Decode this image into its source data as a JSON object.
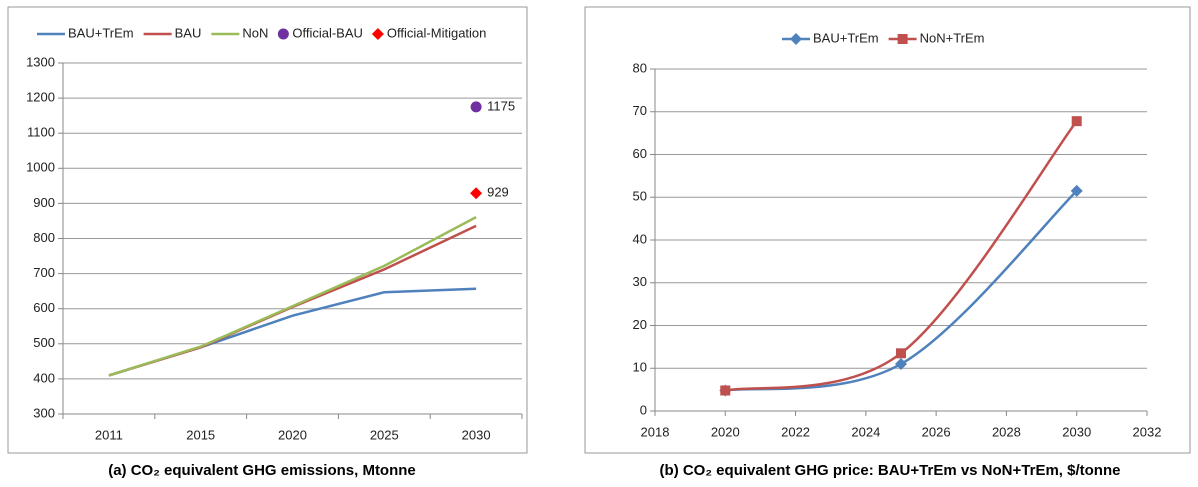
{
  "chart_data": [
    {
      "type": "line",
      "caption": "(a) CO₂ equivalent GHG emissions, Mtonne",
      "categories": [
        "2011",
        "2015",
        "2020",
        "2025",
        "2030"
      ],
      "series": [
        {
          "name": "BAU+TrEm",
          "color": "#4f81bd",
          "line": true,
          "marker": null,
          "values": [
            410,
            490,
            580,
            647,
            657
          ]
        },
        {
          "name": "BAU",
          "color": "#c0504d",
          "line": true,
          "marker": null,
          "values": [
            410,
            490,
            605,
            712,
            836
          ]
        },
        {
          "name": "NoN",
          "color": "#9bbb59",
          "line": true,
          "marker": null,
          "values": [
            410,
            492,
            607,
            722,
            861
          ]
        },
        {
          "name": "Official-BAU",
          "color": "#7030a0",
          "line": false,
          "marker": "circle",
          "values": [
            null,
            null,
            null,
            null,
            1175
          ],
          "data_labels": true
        },
        {
          "name": "Official-Mitigation",
          "color": "#ff0000",
          "line": false,
          "marker": "diamond",
          "values": [
            null,
            null,
            null,
            null,
            929
          ],
          "data_labels": true
        }
      ],
      "ylim": [
        300,
        1300
      ],
      "yticks": [
        300,
        400,
        500,
        600,
        700,
        800,
        900,
        1000,
        1100,
        1200,
        1300
      ],
      "grid": true,
      "legend": "top"
    },
    {
      "type": "line",
      "caption": "(b) CO₂ equivalent GHG price: BAU+TrEm vs NoN+TrEm, $/tonne",
      "x": [
        2020,
        2025,
        2030
      ],
      "smooth": true,
      "series": [
        {
          "name": "BAU+TrEm",
          "color": "#4f81bd",
          "line": true,
          "marker": "diamond",
          "values": [
            4.8,
            11,
            51.5
          ]
        },
        {
          "name": "NoN+TrEm",
          "color": "#c0504d",
          "line": true,
          "marker": "square",
          "values": [
            4.8,
            13.5,
            67.8
          ]
        }
      ],
      "xlim": [
        2018,
        2032
      ],
      "xticks": [
        2018,
        2020,
        2022,
        2024,
        2026,
        2028,
        2030,
        2032
      ],
      "ylim": [
        0,
        80
      ],
      "yticks": [
        0,
        10,
        20,
        30,
        40,
        50,
        60,
        70,
        80
      ],
      "grid": true,
      "legend": "top"
    }
  ]
}
